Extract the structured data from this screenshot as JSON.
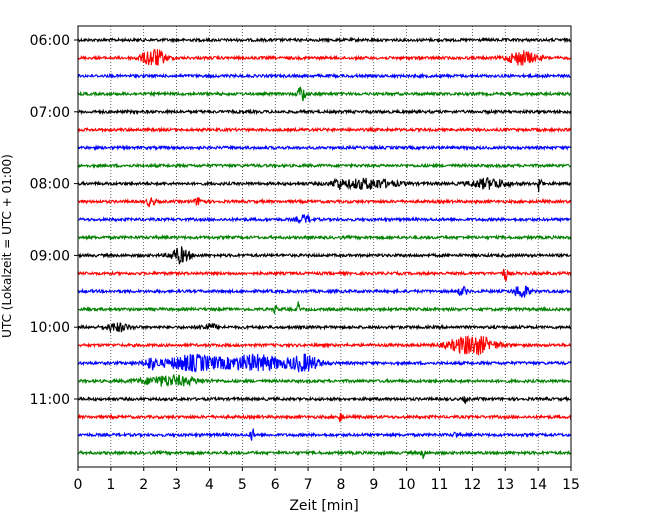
{
  "chart_data": {
    "type": "line",
    "title": "",
    "xlabel": "Zeit  [min]",
    "ylabel": "UTC (Lokalzeit = UTC + 01:00)",
    "xlim": [
      0,
      15
    ],
    "x_ticks": [
      "0",
      "1",
      "2",
      "3",
      "4",
      "5",
      "6",
      "7",
      "8",
      "9",
      "10",
      "11",
      "12",
      "13",
      "14",
      "15"
    ],
    "y_ticks": [
      {
        "label": "06:00",
        "trace": 0
      },
      {
        "label": "07:00",
        "trace": 4
      },
      {
        "label": "08:00",
        "trace": 8
      },
      {
        "label": "09:00",
        "trace": 12
      },
      {
        "label": "10:00",
        "trace": 16
      },
      {
        "label": "11:00",
        "trace": 20
      }
    ],
    "grid": "vertical dotted at each minute",
    "trace_interval_min": 15,
    "colors": [
      "#000000",
      "#ff0000",
      "#0000ff",
      "#008000"
    ],
    "traces": [
      {
        "start": "06:00",
        "color": "#000000",
        "events": []
      },
      {
        "start": "06:15",
        "color": "#ff0000",
        "events": [
          {
            "t": 2.3,
            "amp": 9,
            "dur": 0.5
          },
          {
            "t": 13.5,
            "amp": 7,
            "dur": 0.6
          }
        ]
      },
      {
        "start": "06:30",
        "color": "#0000ff",
        "events": []
      },
      {
        "start": "06:45",
        "color": "#008000",
        "events": [
          {
            "t": 6.8,
            "amp": 9,
            "dur": 0.15
          }
        ]
      },
      {
        "start": "07:00",
        "color": "#000000",
        "events": []
      },
      {
        "start": "07:15",
        "color": "#ff0000",
        "events": []
      },
      {
        "start": "07:30",
        "color": "#0000ff",
        "events": []
      },
      {
        "start": "07:45",
        "color": "#008000",
        "events": []
      },
      {
        "start": "08:00",
        "color": "#000000",
        "events": [
          {
            "t": 8.8,
            "amp": 5,
            "dur": 1.2
          },
          {
            "t": 12.5,
            "amp": 5,
            "dur": 0.8
          },
          {
            "t": 14.05,
            "amp": 12,
            "dur": 0.08
          },
          {
            "t": 7.9,
            "amp": 4,
            "dur": 0.2
          }
        ]
      },
      {
        "start": "08:15",
        "color": "#ff0000",
        "events": [
          {
            "t": 2.2,
            "amp": 4,
            "dur": 0.2
          },
          {
            "t": 3.7,
            "amp": 4,
            "dur": 0.2
          }
        ]
      },
      {
        "start": "08:30",
        "color": "#0000ff",
        "events": [
          {
            "t": 6.9,
            "amp": 4,
            "dur": 0.3
          }
        ]
      },
      {
        "start": "08:45",
        "color": "#008000",
        "events": []
      },
      {
        "start": "09:00",
        "color": "#000000",
        "events": [
          {
            "t": 3.1,
            "amp": 8,
            "dur": 0.4
          }
        ]
      },
      {
        "start": "09:15",
        "color": "#ff0000",
        "events": [
          {
            "t": 13.0,
            "amp": 7,
            "dur": 0.1
          }
        ]
      },
      {
        "start": "09:30",
        "color": "#0000ff",
        "events": [
          {
            "t": 13.5,
            "amp": 7,
            "dur": 0.3
          },
          {
            "t": 11.7,
            "amp": 4,
            "dur": 0.2
          }
        ]
      },
      {
        "start": "09:45",
        "color": "#008000",
        "events": [
          {
            "t": 6.0,
            "amp": 7,
            "dur": 0.05
          },
          {
            "t": 6.7,
            "amp": 7,
            "dur": 0.05
          }
        ]
      },
      {
        "start": "10:00",
        "color": "#000000",
        "events": [
          {
            "t": 1.2,
            "amp": 4,
            "dur": 0.5
          },
          {
            "t": 4.0,
            "amp": 3,
            "dur": 0.4
          }
        ]
      },
      {
        "start": "10:15",
        "color": "#ff0000",
        "events": [
          {
            "t": 12.0,
            "amp": 10,
            "dur": 0.9
          }
        ]
      },
      {
        "start": "10:30",
        "color": "#0000ff",
        "events": [
          {
            "t": 3.5,
            "amp": 8,
            "dur": 1.2
          },
          {
            "t": 5.4,
            "amp": 8,
            "dur": 1.3
          },
          {
            "t": 6.9,
            "amp": 8,
            "dur": 0.6
          },
          {
            "t": 2.2,
            "amp": 5,
            "dur": 0.3
          }
        ]
      },
      {
        "start": "10:45",
        "color": "#008000",
        "events": [
          {
            "t": 2.8,
            "amp": 5,
            "dur": 1.2
          }
        ]
      },
      {
        "start": "11:00",
        "color": "#000000",
        "events": [
          {
            "t": 11.8,
            "amp": 3,
            "dur": 0.1
          }
        ]
      },
      {
        "start": "11:15",
        "color": "#ff0000",
        "events": [
          {
            "t": 8.0,
            "amp": 6,
            "dur": 0.08
          }
        ]
      },
      {
        "start": "11:30",
        "color": "#0000ff",
        "events": [
          {
            "t": 5.3,
            "amp": 7,
            "dur": 0.08
          },
          {
            "t": 11.5,
            "amp": 3,
            "dur": 0.1
          }
        ]
      },
      {
        "start": "11:45",
        "color": "#008000",
        "events": [
          {
            "t": 10.5,
            "amp": 6,
            "dur": 0.08
          }
        ]
      }
    ]
  }
}
